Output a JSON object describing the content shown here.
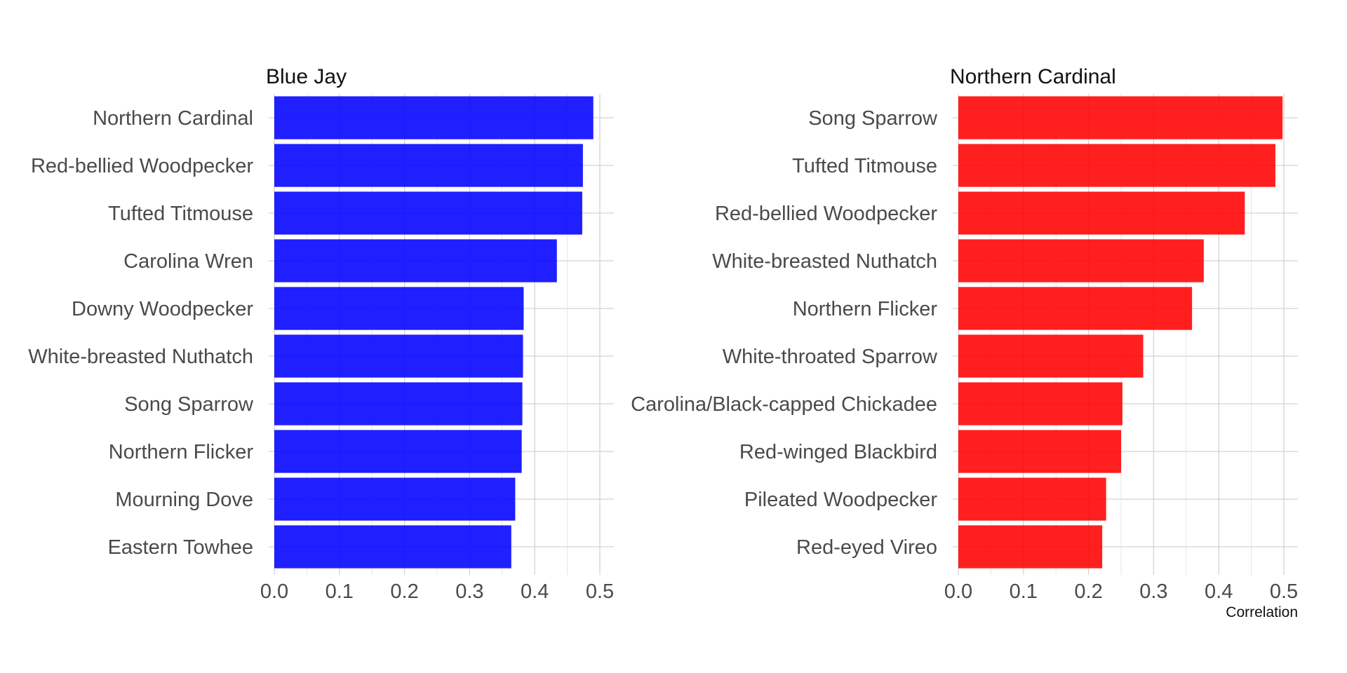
{
  "chart_data": [
    {
      "type": "bar",
      "orientation": "horizontal",
      "title": "Blue Jay",
      "xlabel": "",
      "ylabel": "",
      "color": "#0000ff",
      "xlim": [
        0,
        0.52
      ],
      "xticks": [
        "0.0",
        "0.1",
        "0.2",
        "0.3",
        "0.4",
        "0.5"
      ],
      "grid": true,
      "categories": [
        "Northern Cardinal",
        "Red-bellied Woodpecker",
        "Tufted Titmouse",
        "Carolina Wren",
        "Downy Woodpecker",
        "White-breasted Nuthatch",
        "Song Sparrow",
        "Northern Flicker",
        "Mourning Dove",
        "Eastern Towhee"
      ],
      "values": [
        0.49,
        0.474,
        0.473,
        0.434,
        0.383,
        0.382,
        0.381,
        0.38,
        0.37,
        0.364
      ]
    },
    {
      "type": "bar",
      "orientation": "horizontal",
      "title": "Northern Cardinal",
      "xlabel": "Correlation",
      "ylabel": "",
      "color": "#ff0000",
      "xlim": [
        0,
        0.52
      ],
      "xticks": [
        "0.0",
        "0.1",
        "0.2",
        "0.3",
        "0.4",
        "0.5"
      ],
      "grid": true,
      "categories": [
        "Song Sparrow",
        "Tufted Titmouse",
        "Red-bellied Woodpecker",
        "White-breasted Nuthatch",
        "Northern Flicker",
        "White-throated Sparrow",
        "Carolina/Black-capped Chickadee",
        "Red-winged Blackbird",
        "Pileated Woodpecker",
        "Red-eyed Vireo"
      ],
      "values": [
        0.498,
        0.487,
        0.44,
        0.377,
        0.359,
        0.284,
        0.252,
        0.25,
        0.227,
        0.221
      ]
    }
  ]
}
